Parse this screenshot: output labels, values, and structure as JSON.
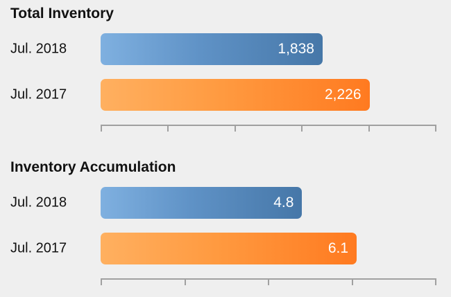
{
  "chart_data": [
    {
      "type": "bar",
      "orientation": "horizontal",
      "title": "Total Inventory",
      "categories": [
        "Jul. 2018",
        "Jul. 2017"
      ],
      "values": [
        1838,
        2226
      ],
      "value_labels": [
        "1,838",
        "2,226"
      ],
      "xlim": [
        0,
        2780
      ],
      "xticks": 6,
      "tick_labels_shown": false,
      "grid": false,
      "bar_colors": [
        "#5f92c6",
        "#ff8c30"
      ]
    },
    {
      "type": "bar",
      "orientation": "horizontal",
      "title": "Inventory Accumulation",
      "categories": [
        "Jul. 2018",
        "Jul. 2017"
      ],
      "values": [
        4.8,
        6.1
      ],
      "value_labels": [
        "4.8",
        "6.1"
      ],
      "xlim": [
        0,
        8
      ],
      "xticks": 5,
      "tick_labels_shown": false,
      "grid": false,
      "bar_colors": [
        "#5f92c6",
        "#ff8c30"
      ]
    }
  ]
}
